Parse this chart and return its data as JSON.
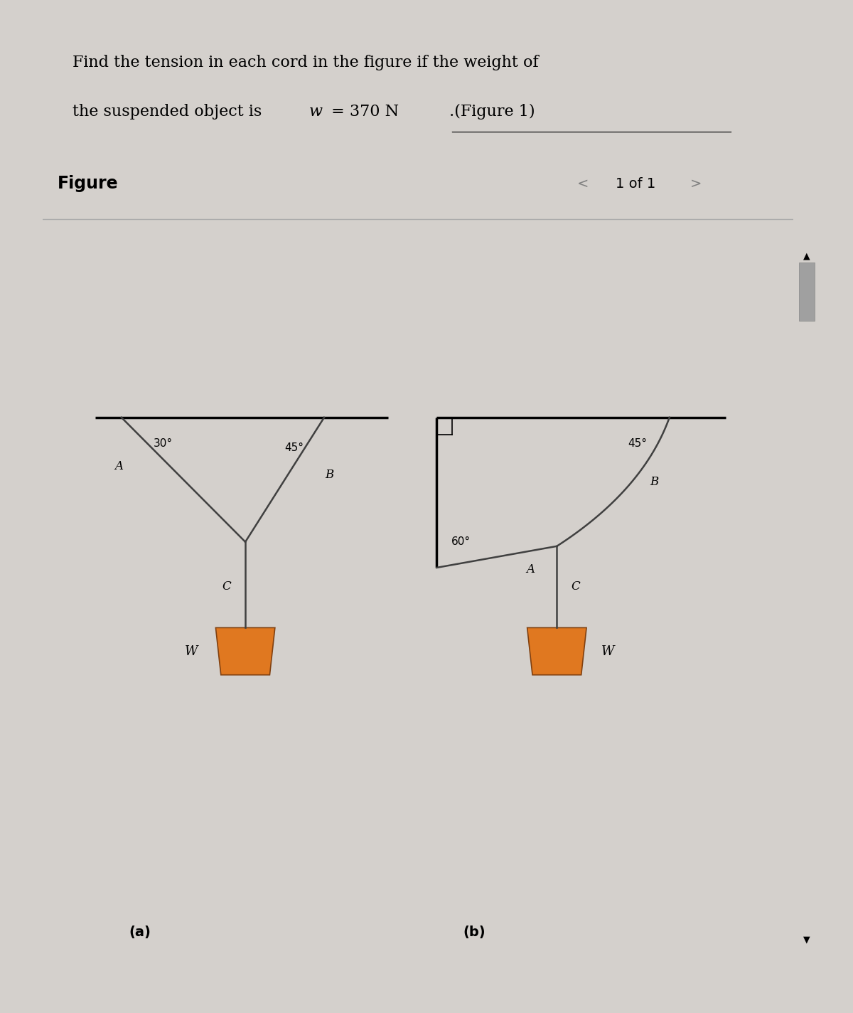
{
  "fig_panel_bg": "#d4d0cc",
  "title_box_color": "#c8d8e8",
  "figure_label": "Figure",
  "nav_text": "1 of 1",
  "label_a": "(a)",
  "label_b": "(b)",
  "weight_label": "W",
  "cord_color": "#404040",
  "weight_color": "#E07820",
  "weight_edge_color": "#804010",
  "scroll_bg": "#c8c8c8",
  "scroll_thumb": "#a0a0a0"
}
